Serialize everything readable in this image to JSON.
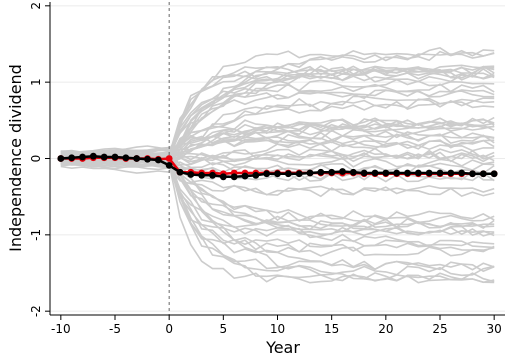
{
  "chart_data": {
    "type": "line",
    "xlabel": "Year",
    "ylabel": "Independence dividend",
    "xlim": [
      -11,
      31
    ],
    "ylim": [
      -2.05,
      2.05
    ],
    "xticks": [
      -10,
      -5,
      0,
      5,
      10,
      15,
      20,
      25,
      30
    ],
    "yticks": [
      -2,
      -1,
      0,
      1,
      2
    ],
    "grid": "horizontal",
    "legend": "none",
    "vline_x": 0,
    "colors": {
      "placebo": "#cccccc",
      "red_series": "#e8000b",
      "black_series": "#000000",
      "grid": "#ebebeb",
      "vline": "#666666"
    },
    "x": [
      -10,
      -9,
      -8,
      -7,
      -6,
      -5,
      -4,
      -3,
      -2,
      -1,
      0,
      1,
      2,
      3,
      4,
      5,
      6,
      7,
      8,
      9,
      10,
      11,
      12,
      13,
      14,
      15,
      16,
      17,
      18,
      19,
      20,
      21,
      22,
      23,
      24,
      25,
      26,
      27,
      28,
      29,
      30
    ],
    "series": [
      {
        "role": "red",
        "values": [
          0.0,
          0.0,
          0.0,
          0.01,
          0.01,
          0.01,
          0.0,
          0.0,
          0.0,
          -0.01,
          0.0,
          -0.18,
          -0.18,
          -0.19,
          -0.19,
          -0.2,
          -0.19,
          -0.19,
          -0.19,
          -0.19,
          -0.19,
          -0.19,
          -0.19,
          -0.19,
          -0.19,
          -0.19,
          -0.19,
          -0.19,
          -0.2,
          -0.2,
          -0.2,
          -0.2,
          -0.2,
          -0.2,
          -0.2,
          -0.2,
          -0.2,
          -0.2,
          -0.2,
          -0.2,
          -0.2
        ]
      },
      {
        "role": "black",
        "values": [
          0.0,
          0.01,
          0.02,
          0.03,
          0.02,
          0.02,
          0.01,
          0.0,
          -0.01,
          -0.02,
          -0.09,
          -0.18,
          -0.21,
          -0.22,
          -0.22,
          -0.24,
          -0.24,
          -0.23,
          -0.22,
          -0.2,
          -0.2,
          -0.2,
          -0.2,
          -0.19,
          -0.18,
          -0.18,
          -0.17,
          -0.18,
          -0.19,
          -0.19,
          -0.19,
          -0.19,
          -0.19,
          -0.19,
          -0.19,
          -0.19,
          -0.19,
          -0.19,
          -0.2,
          -0.2,
          -0.2
        ]
      }
    ],
    "placebo_envelope": {
      "pre_min": -0.22,
      "pre_max": 0.24,
      "post_min": -1.65,
      "post_max": 1.47,
      "count": 60
    }
  }
}
